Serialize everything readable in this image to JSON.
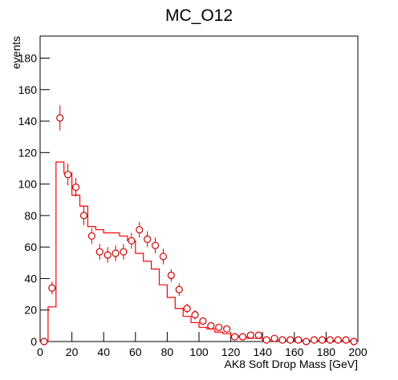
{
  "chart_data": {
    "type": "histogram",
    "title": "MC_O12",
    "x_label": "AK8 Soft Drop Mass [GeV]",
    "y_label": "events",
    "bins": [
      0,
      5,
      10,
      15,
      20,
      25,
      30,
      35,
      40,
      45,
      50,
      55,
      60,
      65,
      70,
      75,
      80,
      85,
      90,
      95,
      100,
      105,
      110,
      115,
      120,
      125,
      130,
      135,
      140,
      145,
      150,
      155,
      160,
      165,
      170,
      175,
      180,
      185,
      190,
      195,
      200
    ],
    "values": [
      0,
      22,
      114,
      107,
      93,
      86,
      73,
      71,
      69,
      69,
      67,
      64,
      56,
      51,
      46,
      36,
      28,
      21,
      16,
      12,
      9,
      8,
      6,
      5,
      3.5,
      3,
      2,
      2,
      1,
      1,
      1,
      1,
      1,
      0.5,
      0.5,
      0.5,
      0.5,
      0.5,
      0.5,
      0.5
    ],
    "color": "#ff0000",
    "points": {
      "values": [
        0,
        34,
        142,
        106,
        98,
        80,
        67,
        57,
        55,
        56,
        57,
        64,
        71,
        65,
        61,
        54,
        42,
        33,
        21,
        17,
        13,
        10,
        9,
        8,
        3,
        3,
        4,
        4,
        1,
        2,
        1,
        1,
        1,
        0,
        1,
        1,
        1,
        1,
        1,
        0
      ],
      "errors": [
        0,
        4,
        8,
        7,
        6,
        6,
        5,
        5,
        5,
        5,
        5,
        5,
        5,
        5,
        5,
        5,
        4,
        4,
        3,
        3,
        2,
        2,
        2,
        2,
        1,
        1,
        1,
        1,
        1,
        1,
        1,
        1,
        1,
        0,
        1,
        1,
        1,
        1,
        1,
        0
      ],
      "color": "#cc0000"
    },
    "xlim": [
      0,
      200
    ],
    "ylim": [
      0,
      194
    ],
    "xticks": [
      0,
      20,
      40,
      60,
      80,
      100,
      120,
      140,
      160,
      180,
      200
    ],
    "yticks": [
      0,
      20,
      40,
      60,
      80,
      100,
      120,
      140,
      160,
      180
    ]
  }
}
